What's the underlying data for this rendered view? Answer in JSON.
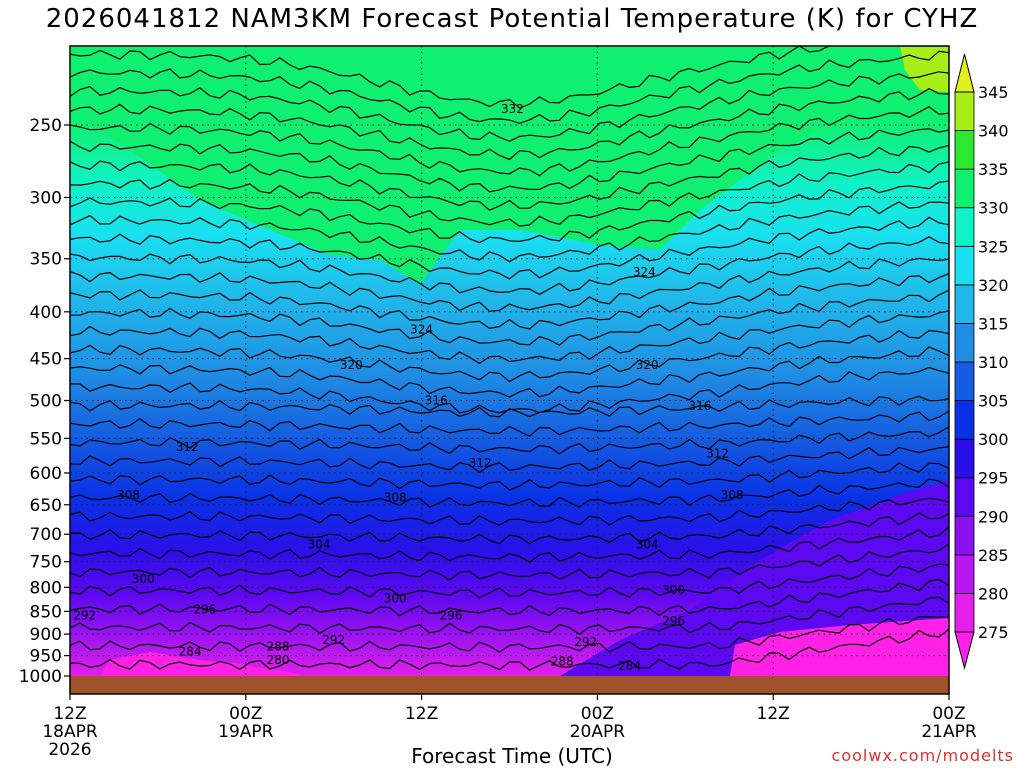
{
  "title": "2026041812 NAM3KM Forecast Potential Temperature (K) for CYHZ",
  "credit": "coolwx.com/modelts",
  "chart_data": {
    "type": "heatmap",
    "title": "2026041812 NAM3KM Forecast Potential Temperature (K) for CYHZ",
    "xlabel": "Forecast Time (UTC)",
    "ylabel": "",
    "x_range_hours": [
      0,
      60
    ],
    "y_range_hpa": [
      1000,
      200
    ],
    "y_ticks": [
      "250",
      "300",
      "350",
      "400",
      "450",
      "500",
      "550",
      "600",
      "650",
      "700",
      "750",
      "800",
      "850",
      "900",
      "950",
      "1000"
    ],
    "x_ticks": [
      {
        "hour": 0,
        "lines": [
          "12Z",
          "18APR",
          "2026"
        ]
      },
      {
        "hour": 12,
        "lines": [
          "00Z",
          "19APR"
        ]
      },
      {
        "hour": 24,
        "lines": [
          "12Z"
        ]
      },
      {
        "hour": 36,
        "lines": [
          "00Z",
          "20APR"
        ]
      },
      {
        "hour": 48,
        "lines": [
          "12Z"
        ]
      },
      {
        "hour": 60,
        "lines": [
          "00Z",
          "21APR"
        ]
      }
    ],
    "colorbar": {
      "levels": [
        270,
        275,
        280,
        285,
        290,
        295,
        300,
        305,
        310,
        315,
        320,
        325,
        330,
        335,
        340,
        345,
        350
      ],
      "labels": [
        "275",
        "280",
        "285",
        "290",
        "295",
        "300",
        "305",
        "310",
        "315",
        "320",
        "325",
        "330",
        "335",
        "340",
        "345"
      ],
      "colors": [
        "#ff22e6",
        "#e320ec",
        "#b718f0",
        "#8d10f0",
        "#5c08f0",
        "#2a10e8",
        "#0a30e6",
        "#155de0",
        "#1f8ee4",
        "#20b8ea",
        "#19e0f0",
        "#10f2c8",
        "#10f070",
        "#2ee830",
        "#a6f018",
        "#e2f020"
      ]
    },
    "contour_labels": [
      {
        "text": "332",
        "hour": 30.2,
        "hpa": 240
      },
      {
        "text": "324",
        "hour": 24.0,
        "hpa": 418
      },
      {
        "text": "324",
        "hour": 39.2,
        "hpa": 362
      },
      {
        "text": "320",
        "hour": 19.2,
        "hpa": 457
      },
      {
        "text": "320",
        "hour": 39.4,
        "hpa": 457
      },
      {
        "text": "316",
        "hour": 25.0,
        "hpa": 500
      },
      {
        "text": "316",
        "hour": 43.0,
        "hpa": 507
      },
      {
        "text": "312",
        "hour": 8.0,
        "hpa": 562
      },
      {
        "text": "312",
        "hour": 28.0,
        "hpa": 585
      },
      {
        "text": "312",
        "hour": 44.2,
        "hpa": 571
      },
      {
        "text": "308",
        "hour": 4.0,
        "hpa": 634
      },
      {
        "text": "308",
        "hour": 22.2,
        "hpa": 638
      },
      {
        "text": "308",
        "hour": 45.2,
        "hpa": 634
      },
      {
        "text": "304",
        "hour": 17.0,
        "hpa": 718
      },
      {
        "text": "304",
        "hour": 39.4,
        "hpa": 718
      },
      {
        "text": "300",
        "hour": 5.0,
        "hpa": 783
      },
      {
        "text": "300",
        "hour": 22.2,
        "hpa": 823
      },
      {
        "text": "300",
        "hour": 41.2,
        "hpa": 805
      },
      {
        "text": "296",
        "hour": 9.2,
        "hpa": 846
      },
      {
        "text": "296",
        "hour": 26.0,
        "hpa": 859
      },
      {
        "text": "296",
        "hour": 41.2,
        "hpa": 871
      },
      {
        "text": "292",
        "hour": 1.0,
        "hpa": 859
      },
      {
        "text": "292",
        "hour": 18.0,
        "hpa": 913
      },
      {
        "text": "292",
        "hour": 35.2,
        "hpa": 918
      },
      {
        "text": "288",
        "hour": 14.2,
        "hpa": 928
      },
      {
        "text": "288",
        "hour": 33.6,
        "hpa": 964
      },
      {
        "text": "284",
        "hour": 8.2,
        "hpa": 940
      },
      {
        "text": "284",
        "hour": 38.2,
        "hpa": 975
      },
      {
        "text": "280",
        "hour": 14.2,
        "hpa": 960
      }
    ]
  }
}
